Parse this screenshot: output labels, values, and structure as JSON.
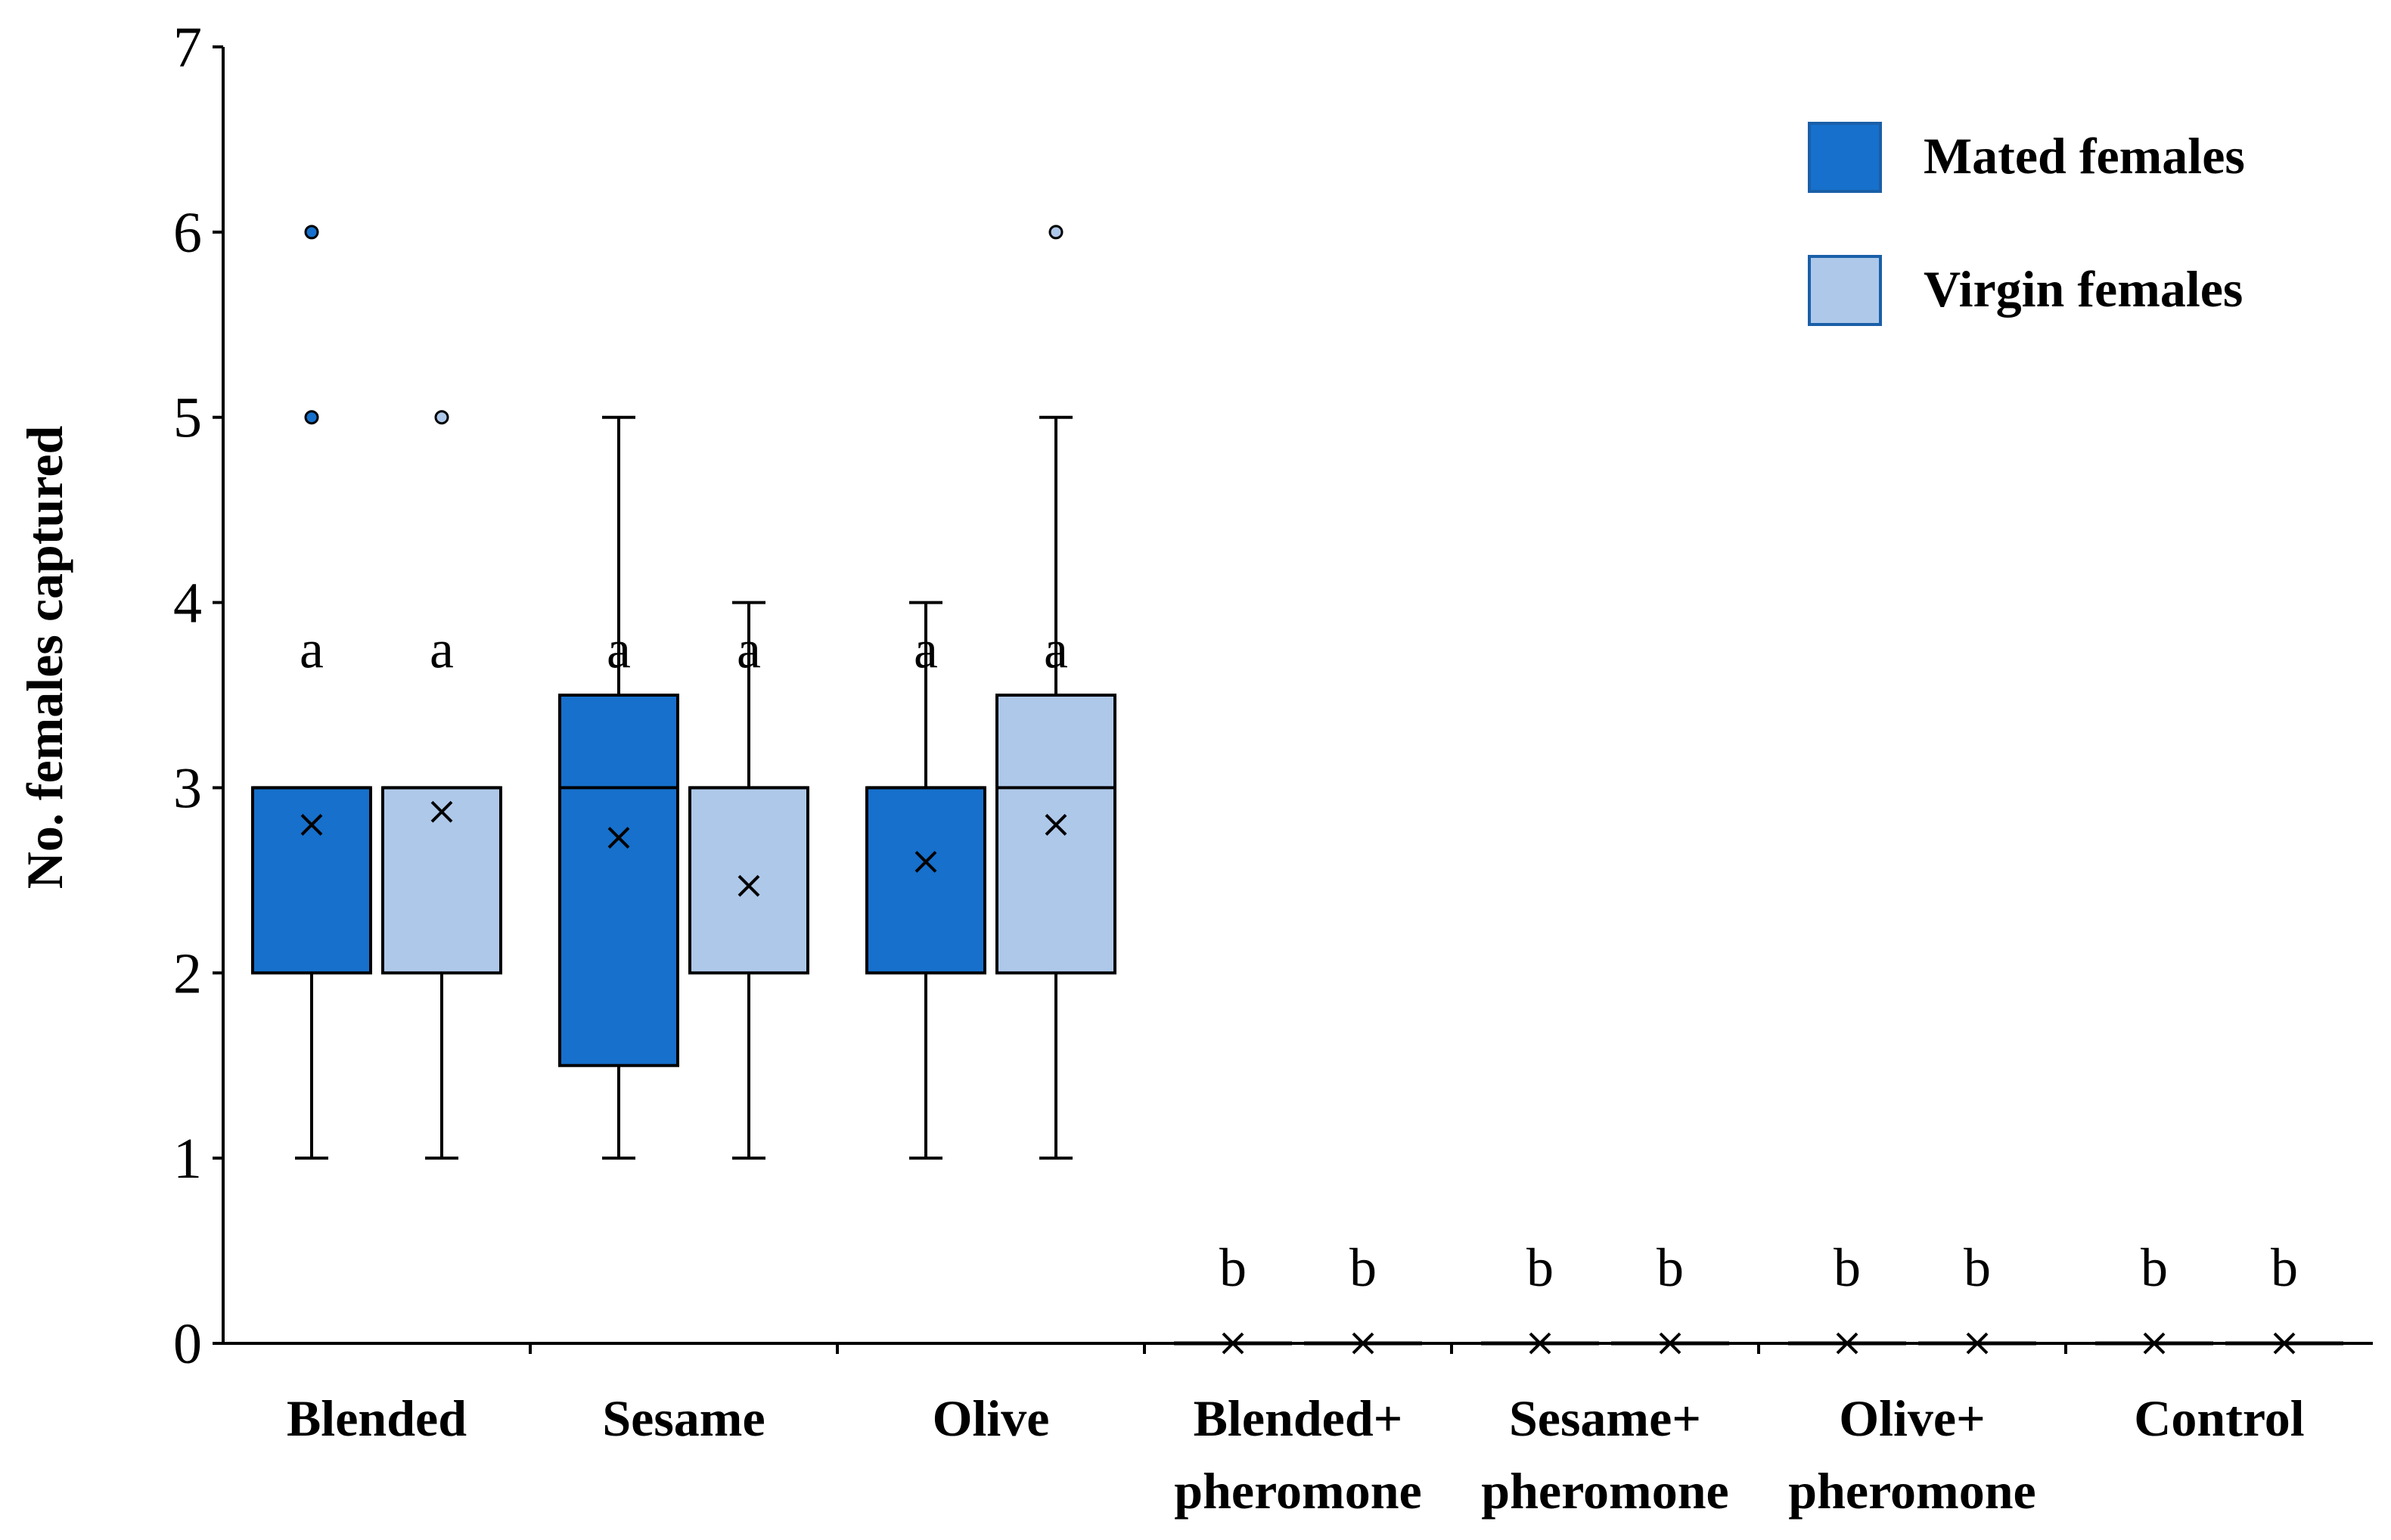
{
  "chart_data": {
    "type": "box",
    "title": "",
    "xlabel": "",
    "ylabel": "No. females captured",
    "ylim": [
      0,
      7
    ],
    "yticks": [
      0,
      1,
      2,
      3,
      4,
      5,
      6,
      7
    ],
    "grid": false,
    "legend_position": "top-right",
    "categories": [
      [
        "Blended"
      ],
      [
        "Sesame"
      ],
      [
        "Olive"
      ],
      [
        "Blended+",
        "pheromone"
      ],
      [
        "Sesame+",
        "pheromone"
      ],
      [
        "Olive+",
        "pheromone"
      ],
      [
        "Control"
      ]
    ],
    "series": [
      {
        "name": "Mated females",
        "color": "#1670CC",
        "boxes": [
          {
            "min": 1,
            "q1": 2,
            "median": 3,
            "q3": 3,
            "max": 3,
            "mean": 2.8,
            "outliers": [
              5,
              6
            ],
            "letter": "a"
          },
          {
            "min": 1,
            "q1": 1.5,
            "median": 3,
            "q3": 3.5,
            "max": 5,
            "mean": 2.73,
            "outliers": [],
            "letter": "a"
          },
          {
            "min": 1,
            "q1": 2,
            "median": 3,
            "q3": 3,
            "max": 4,
            "mean": 2.6,
            "outliers": [],
            "letter": "a"
          },
          {
            "min": 0,
            "q1": 0,
            "median": 0,
            "q3": 0,
            "max": 0,
            "mean": 0,
            "outliers": [],
            "letter": "b"
          },
          {
            "min": 0,
            "q1": 0,
            "median": 0,
            "q3": 0,
            "max": 0,
            "mean": 0,
            "outliers": [],
            "letter": "b"
          },
          {
            "min": 0,
            "q1": 0,
            "median": 0,
            "q3": 0,
            "max": 0,
            "mean": 0,
            "outliers": [],
            "letter": "b"
          },
          {
            "min": 0,
            "q1": 0,
            "median": 0,
            "q3": 0,
            "max": 0,
            "mean": 0,
            "outliers": [],
            "letter": "b"
          }
        ]
      },
      {
        "name": "Virgin females",
        "color": "#AEC8EA",
        "boxes": [
          {
            "min": 1,
            "q1": 2,
            "median": 3,
            "q3": 3,
            "max": 3,
            "mean": 2.87,
            "outliers": [
              5
            ],
            "letter": "a"
          },
          {
            "min": 1,
            "q1": 2,
            "median": 3,
            "q3": 3,
            "max": 4,
            "mean": 2.47,
            "outliers": [],
            "letter": "a"
          },
          {
            "min": 1,
            "q1": 2,
            "median": 3,
            "q3": 3.5,
            "max": 5,
            "mean": 2.8,
            "outliers": [
              6
            ],
            "letter": "a"
          },
          {
            "min": 0,
            "q1": 0,
            "median": 0,
            "q3": 0,
            "max": 0,
            "mean": 0,
            "outliers": [],
            "letter": "b"
          },
          {
            "min": 0,
            "q1": 0,
            "median": 0,
            "q3": 0,
            "max": 0,
            "mean": 0,
            "outliers": [],
            "letter": "b"
          },
          {
            "min": 0,
            "q1": 0,
            "median": 0,
            "q3": 0,
            "max": 0,
            "mean": 0,
            "outliers": [],
            "letter": "b"
          },
          {
            "min": 0,
            "q1": 0,
            "median": 0,
            "q3": 0,
            "max": 0,
            "mean": 0,
            "outliers": [],
            "letter": "b"
          }
        ]
      }
    ]
  }
}
